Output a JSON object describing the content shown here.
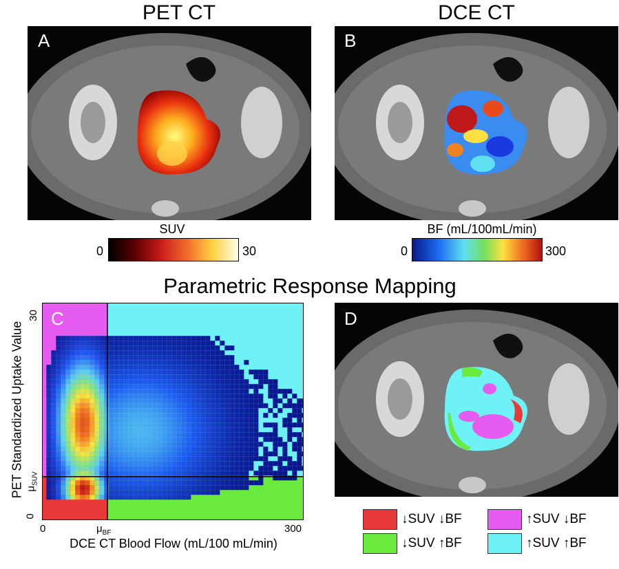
{
  "panel_a": {
    "title": "PET CT",
    "letter": "A",
    "colorbar": {
      "label": "SUV",
      "min": "0",
      "max": "30"
    }
  },
  "panel_b": {
    "title": "DCE CT",
    "letter": "B",
    "colorbar": {
      "label": "BF (mL/100mL/min)",
      "min": "0",
      "max": "300"
    }
  },
  "section_title": "Parametric Response Mapping",
  "panel_c": {
    "letter": "C",
    "xlabel": "DCE CT Blood Flow (mL/100 mL/min)",
    "ylabel": "PET Standardized Uptake Value",
    "x_ticks": {
      "min": "0",
      "mu": "μ",
      "mu_sub": "BF",
      "max": "300"
    },
    "y_ticks": {
      "min": "0",
      "mu": "μ",
      "mu_sub": "SUV",
      "max": "30"
    }
  },
  "panel_d": {
    "letter": "D"
  },
  "legend": [
    {
      "symbol": "↓SUV ↓BF",
      "color": "#e8383a"
    },
    {
      "symbol": "↑SUV ↓BF",
      "color": "#e65cf0"
    },
    {
      "symbol": "↓SUV ↑BF",
      "color": "#6aea3c"
    },
    {
      "symbol": "↑SUV ↑BF",
      "color": "#6ef2f6"
    }
  ],
  "chart_data": {
    "type": "heatmap",
    "xlabel": "DCE CT Blood Flow (mL/100 mL/min)",
    "ylabel": "PET Standardized Uptake Value",
    "xlim": [
      0,
      300
    ],
    "ylim": [
      0,
      30
    ],
    "mu_BF": 75,
    "mu_SUV": 6,
    "quadrant_colors": {
      "low_suv_low_bf": "#e8383a",
      "high_suv_low_bf": "#e65cf0",
      "low_suv_high_bf": "#6aea3c",
      "high_suv_high_bf": "#6ef2f6"
    }
  }
}
